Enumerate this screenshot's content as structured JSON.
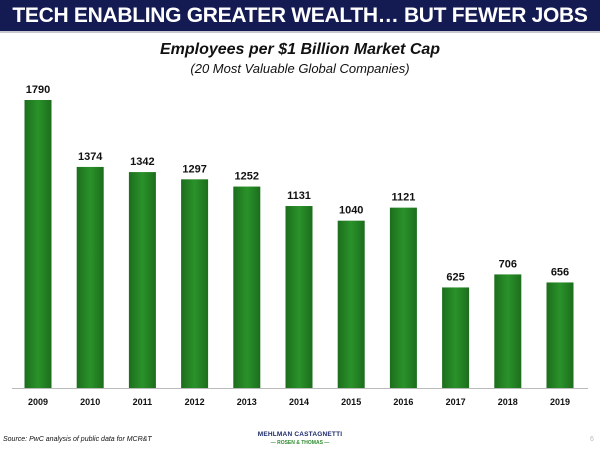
{
  "header": {
    "title": "TECH ENABLING GREATER WEALTH… BUT FEWER JOBS"
  },
  "chart_data": {
    "type": "bar",
    "title": "Employees per $1 Billion Market Cap",
    "subtitle": "(20 Most Valuable Global Companies)",
    "categories": [
      "2009",
      "2010",
      "2011",
      "2012",
      "2013",
      "2014",
      "2015",
      "2016",
      "2017",
      "2018",
      "2019"
    ],
    "values": [
      1790,
      1374,
      1342,
      1297,
      1252,
      1131,
      1040,
      1121,
      625,
      706,
      656
    ],
    "ylim": [
      0,
      1790
    ],
    "grid": false,
    "bar_color": "#238523"
  },
  "footer": {
    "source": "Source: PwC analysis of public data for MCR&T",
    "logo_line1": "MEHLMAN CASTAGNETTI",
    "logo_line2": "— ROSEN & THOMAS —",
    "page_number": "6"
  }
}
